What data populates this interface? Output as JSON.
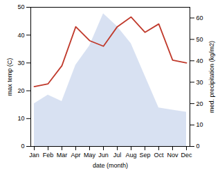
{
  "chart_data": {
    "type": "line",
    "categories": [
      "Jan",
      "Feb",
      "Mar",
      "Apr",
      "May",
      "Jun",
      "Jul",
      "Aug",
      "Sep",
      "Oct",
      "Nov",
      "Dec"
    ],
    "series": [
      {
        "type": "area",
        "color": "#b8c9e8",
        "axis": "y2",
        "values": [
          20,
          24,
          21,
          38,
          47,
          62,
          56,
          48,
          33,
          18,
          17,
          16
        ]
      },
      {
        "type": "line",
        "color": "#c0392b",
        "values": [
          21.5,
          22.5,
          29,
          43,
          38,
          36,
          43,
          46.5,
          41,
          44,
          31,
          30
        ]
      }
    ],
    "xlabel": "date (month)",
    "ylabel": "max temp (C)",
    "y2label": "med. precipitation (kg/m2)",
    "ylim": [
      0,
      50
    ],
    "yticks": [
      0,
      10,
      20,
      30,
      40,
      50
    ],
    "y2lim": [
      0,
      65
    ],
    "y2ticks": [
      0,
      10,
      20,
      30,
      40,
      50,
      60
    ],
    "grid": false
  }
}
